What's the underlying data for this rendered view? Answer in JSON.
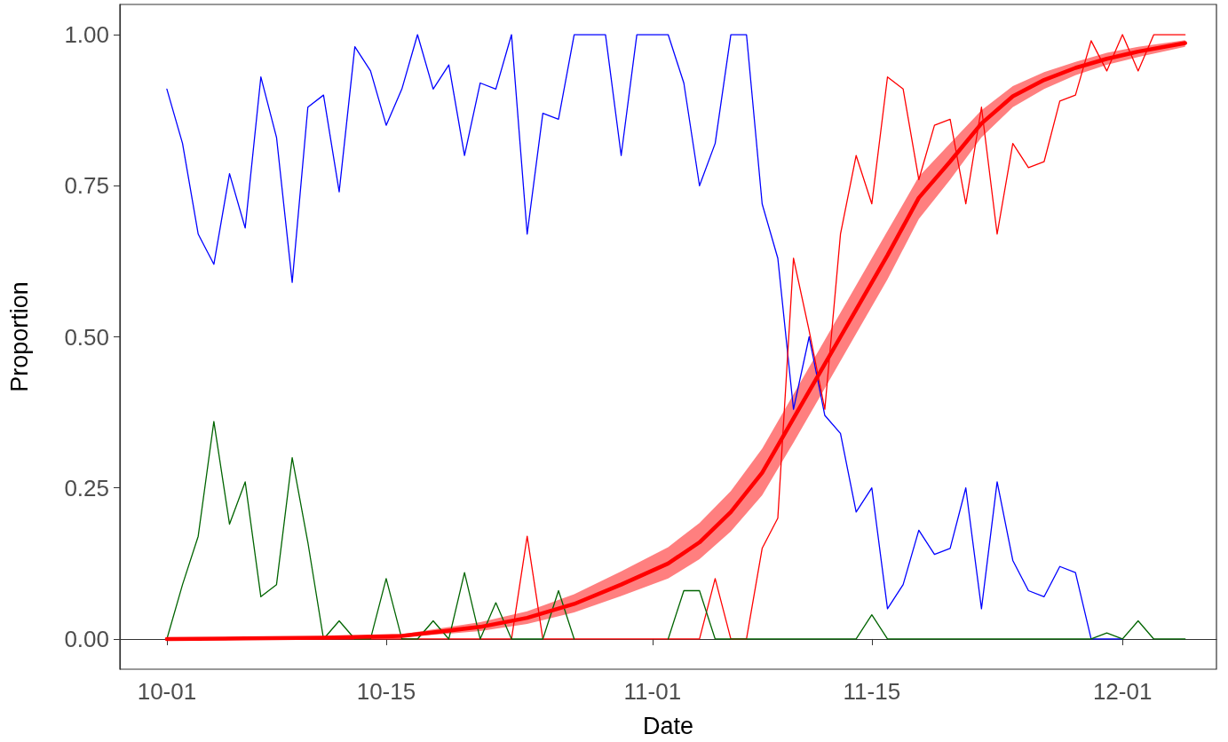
{
  "chart_data": {
    "type": "line",
    "xlabel": "Date",
    "ylabel": "Proportion",
    "marker": "none",
    "line_style": "solid",
    "x": [
      "--10-01",
      "--10-02",
      "--10-03",
      "--10-04",
      "--10-05",
      "--10-06",
      "--10-07",
      "--10-08",
      "--10-09",
      "--10-10",
      "--10-11",
      "--10-12",
      "--10-13",
      "--10-14",
      "--10-15",
      "--10-16",
      "--10-17",
      "--10-18",
      "--10-19",
      "--10-20",
      "--10-21",
      "--10-22",
      "--10-23",
      "--10-24",
      "--10-25",
      "--10-26",
      "--10-27",
      "--10-28",
      "--10-29",
      "--10-30",
      "--10-31",
      "--11-01",
      "--11-02",
      "--11-03",
      "--11-04",
      "--11-05",
      "--11-06",
      "--11-07",
      "--11-08",
      "--11-09",
      "--11-10",
      "--11-11",
      "--11-12",
      "--11-13",
      "--11-14",
      "--11-15",
      "--11-16",
      "--11-17",
      "--11-18",
      "--11-19",
      "--11-20",
      "--11-21",
      "--11-22",
      "--11-23",
      "--11-24",
      "--11-25",
      "--11-26",
      "--11-27",
      "--11-28",
      "--11-29",
      "--11-30",
      "--12-01",
      "--12-02",
      "--12-03",
      "--12-04",
      "--12-05"
    ],
    "xlim": [
      "--09-28",
      "--12-07"
    ],
    "xticks": [
      {
        "value": "--10-01",
        "label": "10-01"
      },
      {
        "value": "--10-15",
        "label": "10-15"
      },
      {
        "value": "--11-01",
        "label": "11-01"
      },
      {
        "value": "--11-15",
        "label": "11-15"
      },
      {
        "value": "--12-01",
        "label": "12-01"
      }
    ],
    "ylim": [
      -0.05,
      1.05
    ],
    "yticks": [
      {
        "value": 0,
        "label": "0.00"
      },
      {
        "value": 0.25,
        "label": "0.25"
      },
      {
        "value": 0.5,
        "label": "0.50"
      },
      {
        "value": 0.75,
        "label": "0.75"
      },
      {
        "value": 1,
        "label": "1.00"
      }
    ],
    "series": [
      {
        "color": "#0000ff",
        "values": [
          0.91,
          0.82,
          0.67,
          0.62,
          0.77,
          0.68,
          0.93,
          0.83,
          0.59,
          0.88,
          0.9,
          0.74,
          0.98,
          0.94,
          0.85,
          0.91,
          1,
          0.91,
          0.95,
          0.8,
          0.92,
          0.91,
          1,
          0.67,
          0.87,
          0.86,
          1,
          1,
          1,
          0.8,
          1,
          1,
          1,
          0.92,
          0.75,
          0.82,
          1,
          1,
          0.72,
          0.63,
          0.38,
          0.5,
          0.37,
          0.34,
          0.21,
          0.25,
          0.05,
          0.09,
          0.18,
          0.14,
          0.15,
          0.25,
          0.05,
          0.26,
          0.13,
          0.08,
          0.07,
          0.12,
          0.11,
          0,
          0,
          0,
          null,
          null,
          null,
          null
        ]
      },
      {
        "color": "#ff0000",
        "values": [
          0,
          0,
          0,
          0,
          0,
          0,
          0,
          0,
          0,
          0,
          0,
          0,
          0,
          0,
          0,
          0,
          0,
          0,
          0,
          0,
          0,
          0,
          0,
          0.17,
          0,
          0,
          0,
          0,
          0,
          0,
          0,
          0,
          0,
          0,
          0,
          0.1,
          0,
          0,
          0.15,
          0.2,
          0.63,
          0.51,
          0.38,
          0.67,
          0.8,
          0.72,
          0.93,
          0.91,
          0.76,
          0.85,
          0.86,
          0.72,
          0.88,
          0.67,
          0.82,
          0.78,
          0.79,
          0.89,
          0.9,
          0.99,
          0.94,
          1,
          0.94,
          1,
          1,
          1
        ]
      },
      {
        "color": "#006400",
        "values": [
          0,
          0.09,
          0.17,
          0.36,
          0.19,
          0.26,
          0.07,
          0.09,
          0.3,
          0.16,
          0,
          0.03,
          0,
          0,
          0.1,
          0,
          0,
          0.03,
          0,
          0.11,
          0,
          0.06,
          0,
          0,
          0,
          0.08,
          0,
          null,
          null,
          null,
          null,
          null,
          0,
          0.08,
          0.08,
          0,
          0,
          0,
          0,
          0,
          0,
          0,
          0,
          0,
          0,
          0.04,
          0,
          0,
          0,
          0,
          0,
          0,
          0,
          0,
          0,
          0,
          0,
          0,
          0,
          0,
          0.01,
          0,
          0.03,
          0,
          0,
          0
        ]
      },
      {
        "color": "#ff0000",
        "x": [
          "--10-01",
          "--10-06",
          "--10-11",
          "--10-16",
          "--10-21",
          "--10-24",
          "--10-27",
          "--10-30",
          "--11-02",
          "--11-04",
          "--11-06",
          "--11-08",
          "--11-10",
          "--11-12",
          "--11-13",
          "--11-14",
          "--11-16",
          "--11-18",
          "--11-20",
          "--11-22",
          "--11-24",
          "--11-26",
          "--11-28",
          "--11-30",
          "--12-02",
          "--12-05"
        ],
        "values": [
          0,
          0.001,
          0.002,
          0.005,
          0.02,
          0.035,
          0.058,
          0.09,
          0.125,
          0.16,
          0.21,
          0.275,
          0.365,
          0.455,
          0.5,
          0.545,
          0.635,
          0.73,
          0.79,
          0.853,
          0.898,
          0.925,
          0.945,
          0.96,
          0.972,
          0.986
        ],
        "lower": [
          0,
          0.0005,
          0.001,
          0.003,
          0.013,
          0.025,
          0.044,
          0.071,
          0.1,
          0.132,
          0.178,
          0.238,
          0.325,
          0.415,
          0.46,
          0.505,
          0.595,
          0.695,
          0.76,
          0.83,
          0.88,
          0.91,
          0.933,
          0.95,
          0.963,
          0.98
        ],
        "upper": [
          0.001,
          0.002,
          0.004,
          0.008,
          0.028,
          0.046,
          0.074,
          0.112,
          0.152,
          0.192,
          0.245,
          0.315,
          0.405,
          0.495,
          0.54,
          0.585,
          0.675,
          0.765,
          0.82,
          0.875,
          0.915,
          0.938,
          0.955,
          0.97,
          0.98,
          0.991
        ]
      }
    ]
  }
}
